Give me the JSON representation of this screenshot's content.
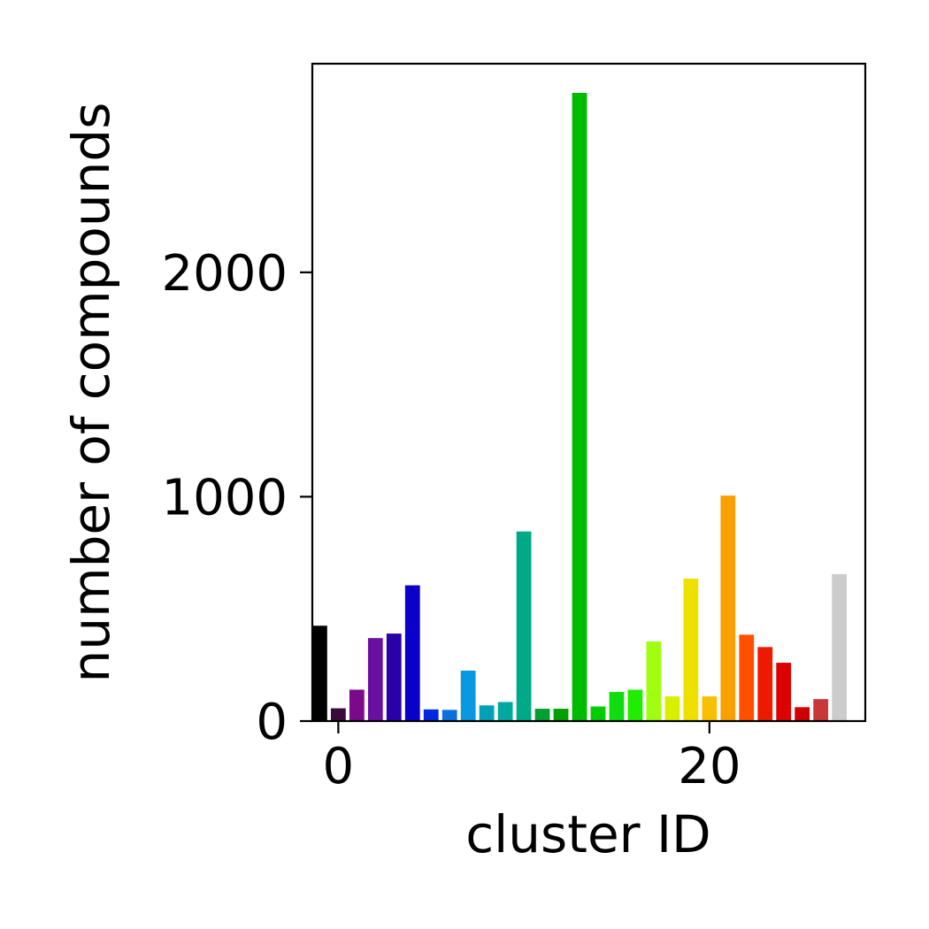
{
  "chart_data": {
    "type": "bar",
    "title": "",
    "xlabel": "cluster ID",
    "ylabel": "number of compounds",
    "xlim": [
      -1.4,
      28.4
    ],
    "ylim": [
      0,
      2930
    ],
    "x_ticks": [
      0,
      20
    ],
    "x_tick_labels": [
      "0",
      "20"
    ],
    "y_ticks": [
      0,
      1000,
      2000
    ],
    "y_tick_labels": [
      "0",
      "1000",
      "2000"
    ],
    "grid": false,
    "legend": "none",
    "x": [
      -1,
      0,
      1,
      2,
      3,
      4,
      5,
      6,
      7,
      8,
      9,
      10,
      11,
      12,
      13,
      14,
      15,
      16,
      17,
      18,
      19,
      20,
      21,
      22,
      23,
      24,
      25,
      26,
      27
    ],
    "values": [
      425,
      57,
      140,
      370,
      390,
      605,
      52,
      50,
      225,
      70,
      85,
      845,
      55,
      55,
      2800,
      65,
      130,
      140,
      355,
      110,
      635,
      110,
      1005,
      385,
      330,
      260,
      62,
      98,
      655
    ],
    "colors": [
      "#000000",
      "#3a0a3a",
      "#7a0a8a",
      "#6a10a0",
      "#2a00a8",
      "#0a00c8",
      "#0028e0",
      "#0a70e0",
      "#0a98e0",
      "#00a0b8",
      "#00a8a0",
      "#00aa88",
      "#00a030",
      "#00a000",
      "#00bb00",
      "#00cc00",
      "#10dd10",
      "#20ee00",
      "#a0ff10",
      "#d8f000",
      "#f0e000",
      "#f8c000",
      "#f8a000",
      "#ff5000",
      "#ee1a00",
      "#dd0000",
      "#d00000",
      "#c83838",
      "#cccccc"
    ]
  }
}
